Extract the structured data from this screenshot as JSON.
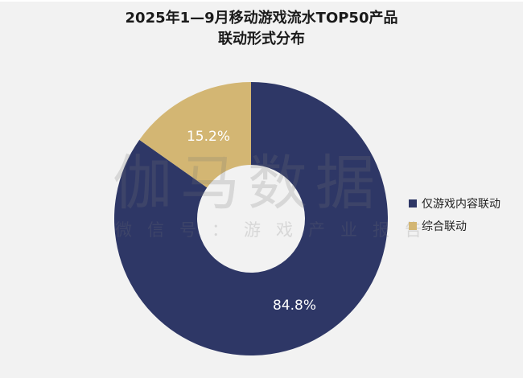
{
  "title": {
    "line1": "2025年1—9月移动游戏流水TOP50产品",
    "line2": "联动形式分布"
  },
  "watermark": {
    "main": "伽马数据",
    "sub": "微信号：游戏产业报告"
  },
  "legend": [
    {
      "label": "仅游戏内容联动",
      "color": "#2e3766"
    },
    {
      "label": "综合联动",
      "color": "#d3b673"
    }
  ],
  "slices": [
    {
      "label": "84.8%"
    },
    {
      "label": "15.2%"
    }
  ],
  "chart_data": {
    "type": "pie",
    "variant": "donut",
    "title": "2025年1—9月移动游戏流水TOP50产品联动形式分布",
    "categories": [
      "仅游戏内容联动",
      "综合联动"
    ],
    "values": [
      84.8,
      15.2
    ],
    "unit": "%",
    "colors": [
      "#2e3766",
      "#d3b673"
    ],
    "data_labels": [
      "84.8%",
      "15.2%"
    ],
    "legend_position": "right",
    "start_angle": "12 o'clock, 综合联动 counter-clockwise"
  }
}
